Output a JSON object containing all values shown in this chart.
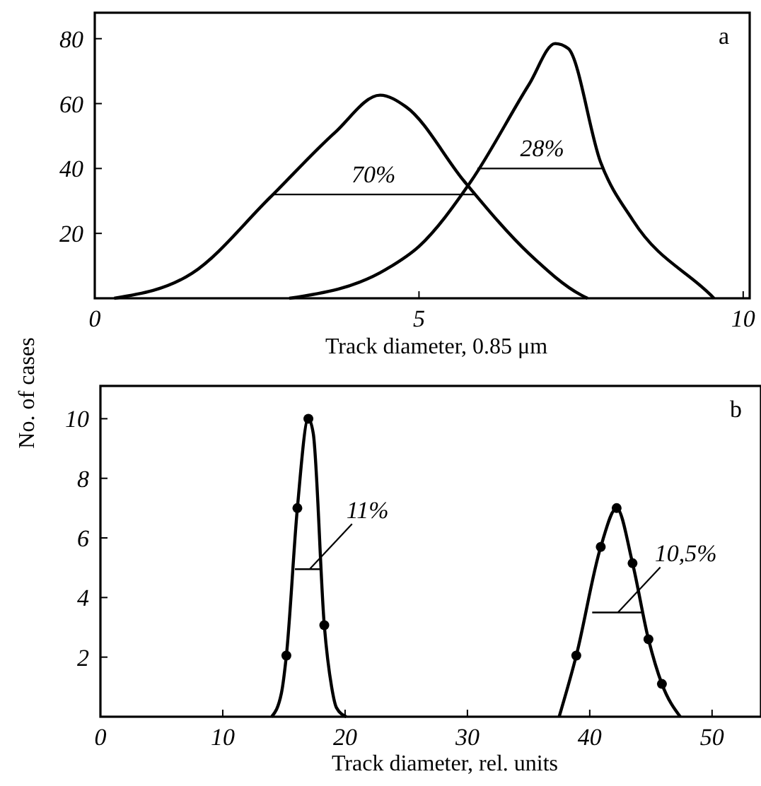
{
  "chart_data": [
    {
      "type": "line",
      "xlabel": "Track diameter, 0.85 μm",
      "ylabel": "No. of cases",
      "xlim": [
        0,
        10.1
      ],
      "xticks": [
        0,
        5,
        10
      ],
      "ylim": [
        0,
        88
      ],
      "yticks": [
        20,
        40,
        60,
        80
      ],
      "line_style": "solid",
      "marker": "none",
      "series": [
        {
          "color": "#000000",
          "x": [
            0.3,
            1.5,
            2.7,
            3.7,
            4.4,
            4.8,
            5.7,
            6.7,
            7.5,
            7.6
          ],
          "values": [
            0,
            7.7,
            31,
            51,
            62.6,
            59,
            36,
            13.7,
            1,
            0
          ]
        },
        {
          "color": "#000000",
          "x": [
            3.0,
            4.5,
            5.0,
            5.8,
            6.7,
            7.1,
            7.3,
            7.8,
            8.3,
            9.5,
            9.55
          ],
          "values": [
            0,
            9,
            16,
            36,
            66,
            78.5,
            77,
            42,
            24,
            1,
            0
          ]
        },
        {
          "color": "#000000",
          "x": [
            2.75,
            5.85
          ],
          "values": [
            32,
            32
          ]
        },
        {
          "color": "#000000",
          "x": [
            5.9,
            7.85
          ],
          "values": [
            40,
            40
          ]
        }
      ],
      "annotations": [
        "a",
        {
          "text": "70%",
          "x": 4.3,
          "y": 34
        },
        {
          "text": "28%",
          "x": 6.9,
          "y": 42
        }
      ]
    },
    {
      "type": "line",
      "xlabel": "Track diameter, rel. units",
      "xlim": [
        0,
        54
      ],
      "xticks": [
        0,
        10,
        20,
        30,
        40,
        50
      ],
      "ylim": [
        0,
        11.1
      ],
      "yticks": [
        2,
        4,
        6,
        8,
        10
      ],
      "line_style": "solid",
      "marker": "none",
      "series": [
        {
          "color": "#000000",
          "x": [
            14.0,
            14.8,
            15.2,
            16.1,
            17.0,
            17.4,
            18.3,
            18.9,
            19.3,
            20.1
          ],
          "values": [
            0,
            0.8,
            2.05,
            7.0,
            10,
            9.5,
            3.07,
            1,
            0.3,
            0
          ]
        },
        {
          "color": "#000000",
          "x": [
            37.5,
            38.9,
            40.9,
            42.2,
            43.5,
            44.8,
            45.9,
            47.4
          ],
          "values": [
            0,
            2.05,
            5.7,
            7.0,
            5.15,
            2.6,
            1.1,
            0
          ]
        },
        {
          "type": "scatter",
          "marker": "circle",
          "color": "#000000",
          "x": [
            15.2,
            16.1,
            17.0,
            18.3,
            38.9,
            40.9,
            42.2,
            43.5,
            44.8,
            45.9
          ],
          "values": [
            2.05,
            7.0,
            10,
            3.07,
            2.05,
            5.7,
            7.0,
            5.15,
            2.6,
            1.1
          ]
        },
        {
          "color": "#000000",
          "x": [
            15.9,
            18.0
          ],
          "values": [
            4.95,
            4.95
          ]
        },
        {
          "color": "#000000",
          "x": [
            40.2,
            44.4
          ],
          "values": [
            3.5,
            3.5
          ]
        }
      ],
      "annotations": [
        "b",
        {
          "text": "11%",
          "x": 17.1,
          "y": 4.95
        },
        {
          "text": "10,5%",
          "x": 42.3,
          "y": 3.5
        }
      ]
    }
  ]
}
